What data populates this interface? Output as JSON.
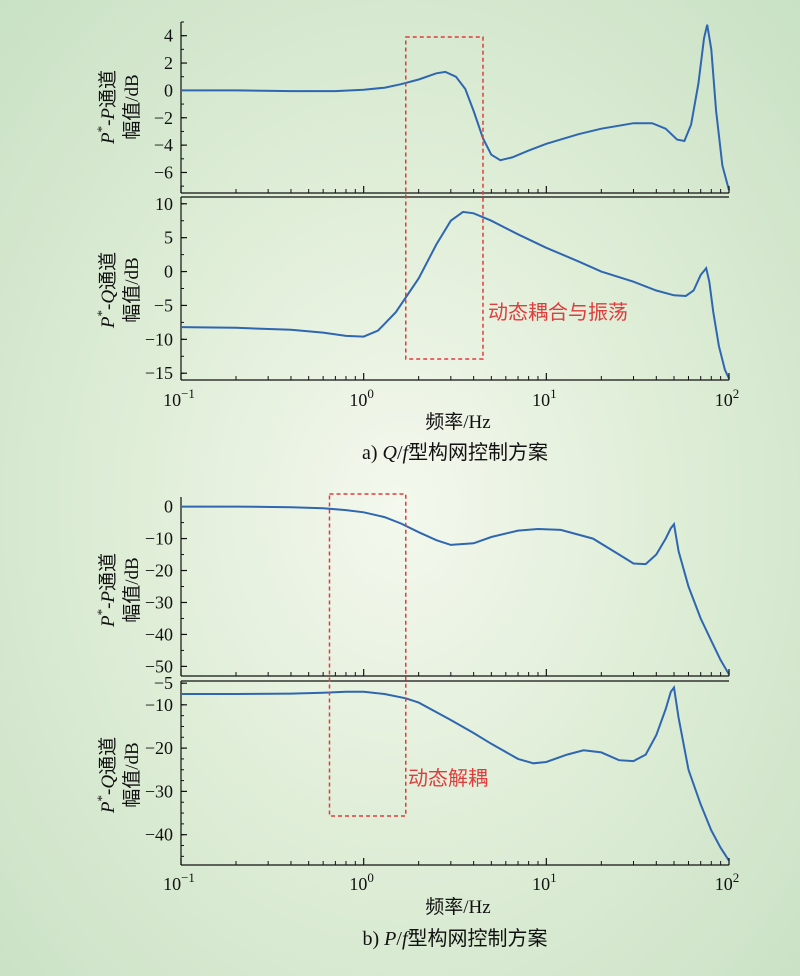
{
  "colors": {
    "curve": "#2e66b0",
    "box": "#e03c3c",
    "axis": "#111111"
  },
  "chart_data": [
    {
      "type": "line",
      "figure": "a",
      "caption_prefix": "a)",
      "caption_text": "型构网控制方案",
      "caption_q": "Q",
      "caption_f": "f",
      "xlabel": "频率/Hz",
      "xscale": "log",
      "xlim": [
        0.1,
        100
      ],
      "xticks": [
        {
          "base": "10",
          "exp": "−1"
        },
        {
          "base": "10",
          "exp": "0"
        },
        {
          "base": "10",
          "exp": "1"
        },
        {
          "base": "10",
          "exp": "2"
        }
      ],
      "annotation": "动态耦合与振荡",
      "highlight_range": [
        1.7,
        4.5
      ],
      "subplots": [
        {
          "ylabel_line1_a": "P",
          "ylabel_line1_sup": "*",
          "ylabel_line1_b": "-",
          "ylabel_line1_c": "P",
          "ylabel_line1_d": "通道",
          "ylabel_line2": "幅值/dB",
          "ylim": [
            -7.5,
            5
          ],
          "yticks": [
            "4",
            "2",
            "0",
            "−2",
            "−4",
            "−6"
          ],
          "ytick_values": [
            4,
            2,
            0,
            -2,
            -4,
            -6
          ],
          "series": [
            {
              "x": [
                0.1,
                0.2,
                0.4,
                0.7,
                1.0,
                1.3,
                1.6,
                2.0,
                2.5,
                2.8,
                3.2,
                3.6,
                4.0,
                4.5,
                5.0,
                5.6,
                6.5,
                8.0,
                10,
                15,
                20,
                30,
                38,
                45,
                52,
                57,
                62,
                68,
                73,
                76,
                80,
                85,
                92,
                100
              ],
              "y": [
                0,
                0,
                -0.05,
                -0.05,
                0.05,
                0.2,
                0.45,
                0.8,
                1.25,
                1.35,
                1.0,
                0.1,
                -1.5,
                -3.5,
                -4.7,
                -5.1,
                -4.9,
                -4.4,
                -3.9,
                -3.2,
                -2.8,
                -2.4,
                -2.4,
                -2.8,
                -3.6,
                -3.7,
                -2.5,
                0.5,
                3.8,
                4.8,
                3.0,
                -1.5,
                -5.5,
                -7.3
              ]
            }
          ]
        },
        {
          "ylabel_line1_a": "P",
          "ylabel_line1_sup": "*",
          "ylabel_line1_b": "-",
          "ylabel_line1_c": "Q",
          "ylabel_line1_d": "通道",
          "ylabel_line2": "幅值/dB",
          "ylim": [
            -16,
            11
          ],
          "yticks": [
            "10",
            "5",
            "0",
            "−5",
            "−10",
            "−15"
          ],
          "ytick_values": [
            10,
            5,
            0,
            -5,
            -10,
            -15
          ],
          "series": [
            {
              "x": [
                0.1,
                0.2,
                0.4,
                0.6,
                0.8,
                1.0,
                1.2,
                1.5,
                2.0,
                2.5,
                3.0,
                3.5,
                4.0,
                5.0,
                7.0,
                10,
                15,
                20,
                30,
                40,
                50,
                58,
                64,
                70,
                75,
                78,
                82,
                88,
                95,
                100
              ],
              "y": [
                -8.2,
                -8.3,
                -8.6,
                -9.0,
                -9.5,
                -9.6,
                -8.7,
                -6.0,
                -1.0,
                4.0,
                7.5,
                8.8,
                8.6,
                7.5,
                5.5,
                3.5,
                1.5,
                0,
                -1.5,
                -2.8,
                -3.5,
                -3.6,
                -2.8,
                -0.5,
                0.5,
                -1.5,
                -6.0,
                -11.0,
                -14.5,
                -15.8
              ]
            }
          ]
        }
      ]
    },
    {
      "type": "line",
      "figure": "b",
      "caption_prefix": "b)",
      "caption_p": "P",
      "caption_f": "f",
      "caption_text": "型构网控制方案",
      "xlabel": "频率/Hz",
      "xscale": "log",
      "xlim": [
        0.1,
        100
      ],
      "xticks": [
        {
          "base": "10",
          "exp": "−1"
        },
        {
          "base": "10",
          "exp": "0"
        },
        {
          "base": "10",
          "exp": "1"
        },
        {
          "base": "10",
          "exp": "2"
        }
      ],
      "annotation": "动态解耦",
      "highlight_range": [
        0.65,
        1.7
      ],
      "subplots": [
        {
          "ylabel_line1_a": "P",
          "ylabel_line1_sup": "*",
          "ylabel_line1_b": "-",
          "ylabel_line1_c": "P",
          "ylabel_line1_d": "通道",
          "ylabel_line2": "幅值/dB",
          "ylim": [
            -53,
            3
          ],
          "yticks": [
            "0",
            "−10",
            "−20",
            "−30",
            "−40",
            "−50"
          ],
          "ytick_values": [
            0,
            -10,
            -20,
            -30,
            -40,
            -50
          ],
          "series": [
            {
              "x": [
                0.1,
                0.2,
                0.4,
                0.6,
                0.8,
                1.0,
                1.3,
                1.6,
                2.0,
                2.5,
                3.0,
                4.0,
                5.0,
                7.0,
                9.0,
                12,
                18,
                25,
                30,
                35,
                40,
                45,
                48,
                50,
                53,
                60,
                70,
                80,
                90,
                100
              ],
              "y": [
                0,
                0,
                -0.2,
                -0.5,
                -1.1,
                -1.8,
                -3.3,
                -5.3,
                -8.0,
                -10.5,
                -12.0,
                -11.5,
                -9.5,
                -7.5,
                -7.0,
                -7.3,
                -10.0,
                -15.0,
                -17.8,
                -18.0,
                -15.0,
                -10.0,
                -6.8,
                -5.5,
                -14.0,
                -25.0,
                -35.0,
                -42.0,
                -48.0,
                -52.5
              ]
            }
          ]
        },
        {
          "ylabel_line1_a": "P",
          "ylabel_line1_sup": "*",
          "ylabel_line1_b": "-",
          "ylabel_line1_c": "Q",
          "ylabel_line1_d": "通道",
          "ylabel_line2": "幅值/dB",
          "ylim": [
            -47,
            -4.5
          ],
          "yticks": [
            "−5",
            "−10",
            "−20",
            "−30",
            "−40"
          ],
          "ytick_values": [
            -5,
            -10,
            -20,
            -30,
            -40
          ],
          "series": [
            {
              "x": [
                0.1,
                0.2,
                0.4,
                0.6,
                0.8,
                1.0,
                1.3,
                1.7,
                2.0,
                3.0,
                4.0,
                5.0,
                7.0,
                8.5,
                10,
                13,
                16,
                20,
                25,
                30,
                35,
                40,
                45,
                48,
                50,
                53,
                60,
                70,
                80,
                90,
                100
              ],
              "y": [
                -7.5,
                -7.5,
                -7.4,
                -7.2,
                -7.0,
                -7.0,
                -7.5,
                -8.5,
                -9.5,
                -13.5,
                -16.5,
                -19.0,
                -22.5,
                -23.5,
                -23.2,
                -21.5,
                -20.5,
                -21.0,
                -22.8,
                -23.0,
                -21.5,
                -17.0,
                -11.0,
                -7.0,
                -6.0,
                -13.0,
                -25.0,
                -33.0,
                -39.0,
                -43.0,
                -46.0
              ]
            }
          ]
        }
      ]
    }
  ]
}
